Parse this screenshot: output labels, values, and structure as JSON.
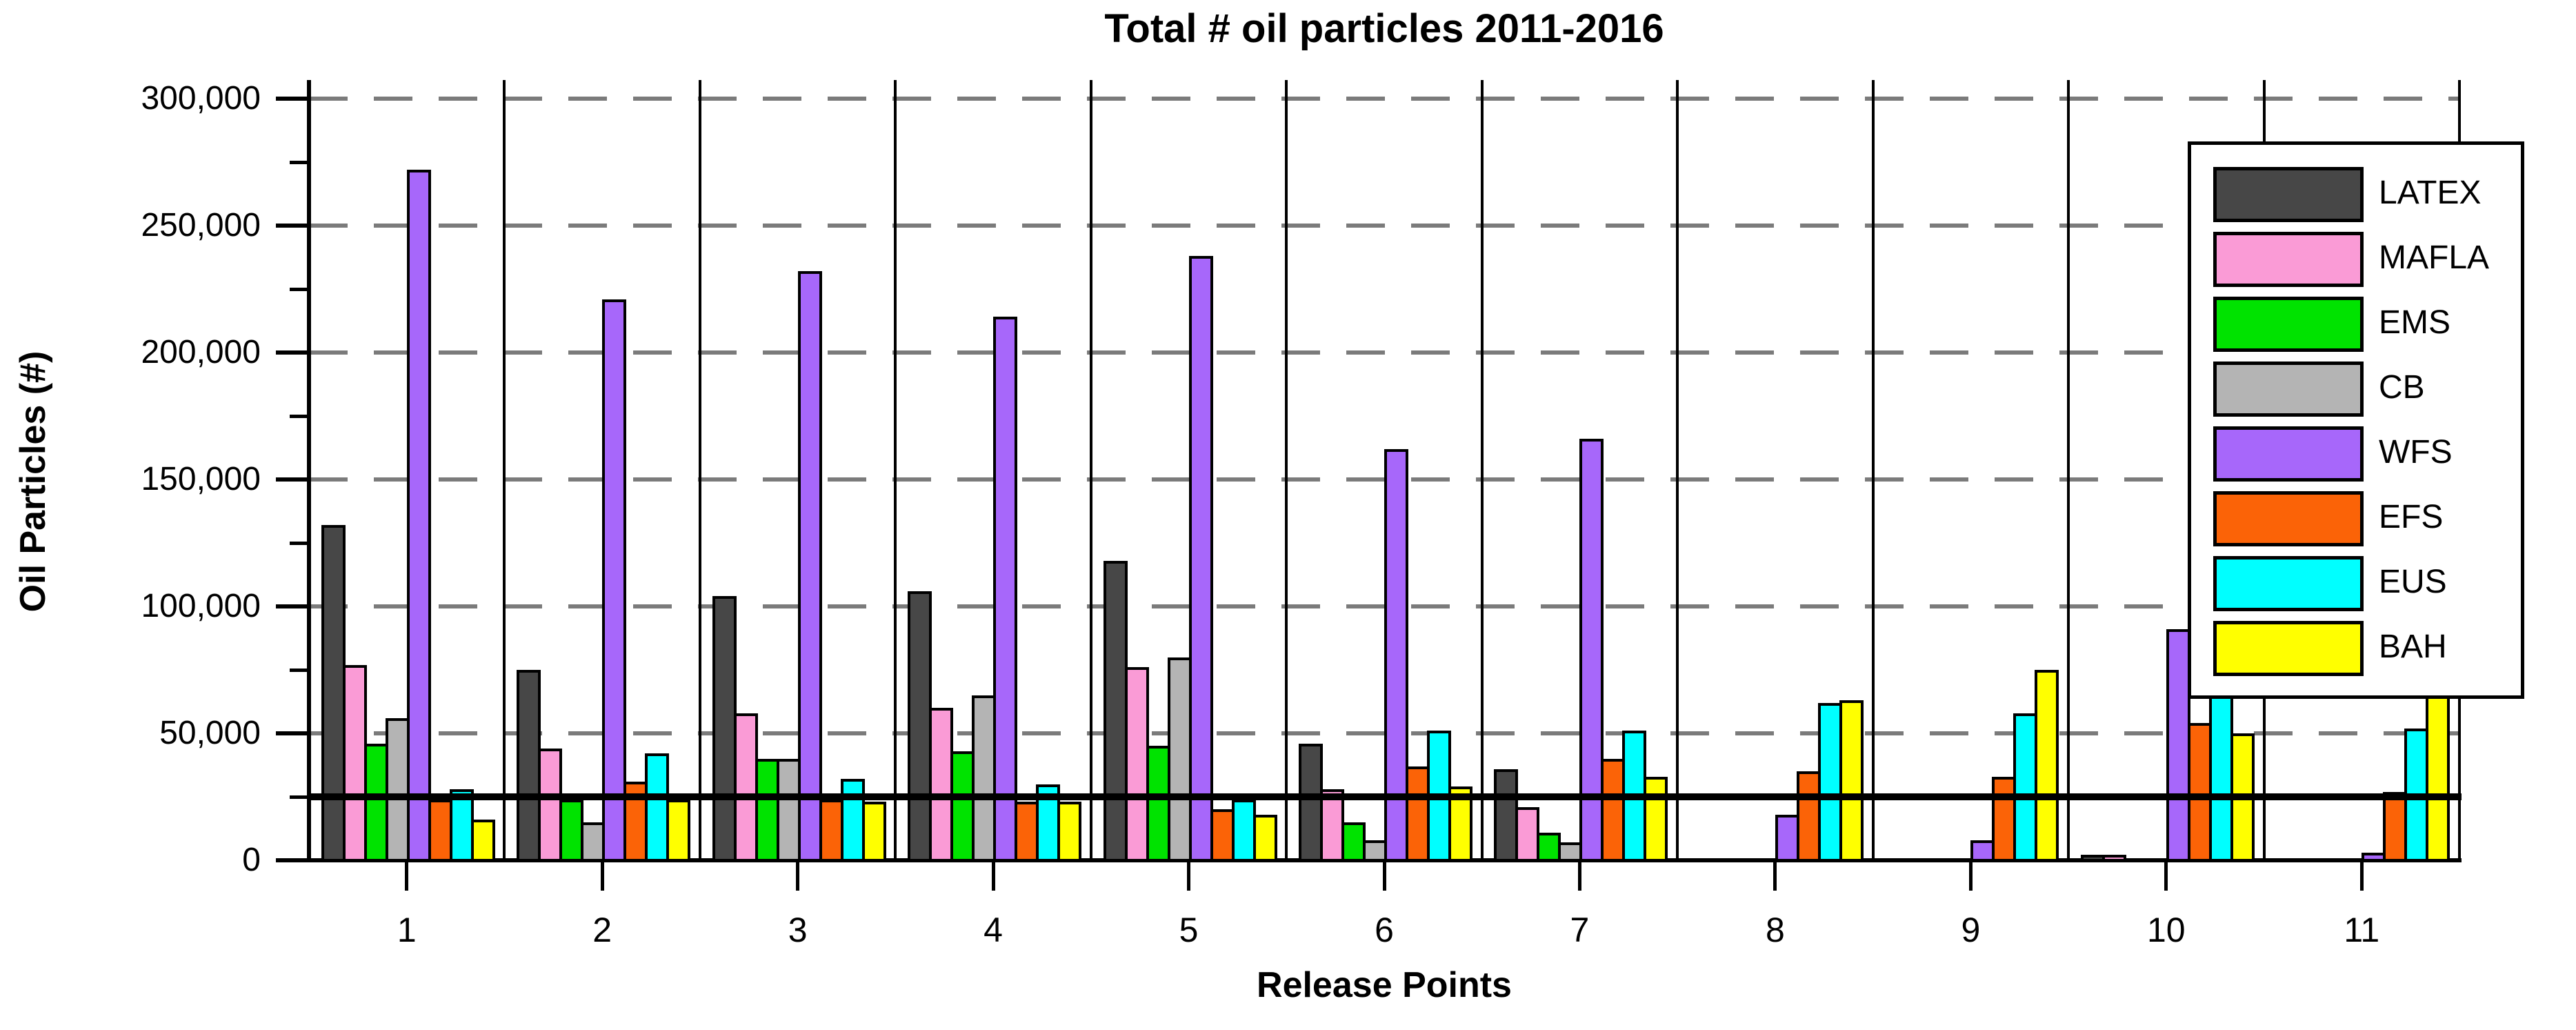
{
  "chart_data": {
    "type": "bar",
    "title": "Total # oil particles 2011-2016",
    "xlabel": "Release Points",
    "ylabel": "Oil Particles (#)",
    "categories": [
      "1",
      "2",
      "3",
      "4",
      "5",
      "6",
      "7",
      "8",
      "9",
      "10",
      "11"
    ],
    "series": [
      {
        "name": "LATEX",
        "color": "#474747",
        "values": [
          132000,
          75000,
          104000,
          106000,
          118000,
          46000,
          36000,
          0,
          0,
          2000,
          0
        ]
      },
      {
        "name": "MAFLA",
        "color": "#FA9BD6",
        "values": [
          77000,
          44000,
          58000,
          60000,
          76000,
          28000,
          21000,
          0,
          0,
          2000,
          0
        ]
      },
      {
        "name": "EMS",
        "color": "#00E300",
        "values": [
          46000,
          24000,
          40000,
          43000,
          45000,
          15000,
          11000,
          0,
          0,
          0,
          0
        ]
      },
      {
        "name": "CB",
        "color": "#B4B4B4",
        "values": [
          56000,
          15000,
          40000,
          65000,
          80000,
          8000,
          7000,
          0,
          0,
          0,
          0
        ]
      },
      {
        "name": "WFS",
        "color": "#A767FA",
        "values": [
          272000,
          221000,
          232000,
          214000,
          238000,
          162000,
          166000,
          18000,
          8000,
          91000,
          3000
        ]
      },
      {
        "name": "EFS",
        "color": "#FB6307",
        "values": [
          24000,
          31000,
          24000,
          23000,
          20000,
          37000,
          40000,
          35000,
          33000,
          54000,
          27000
        ]
      },
      {
        "name": "EUS",
        "color": "#00FFFF",
        "values": [
          28000,
          42000,
          32000,
          30000,
          24000,
          51000,
          51000,
          62000,
          58000,
          65000,
          52000
        ]
      },
      {
        "name": "BAH",
        "color": "#FFFF00",
        "values": [
          16000,
          24000,
          23000,
          23000,
          18000,
          29000,
          33000,
          63000,
          75000,
          50000,
          94000
        ]
      }
    ],
    "ylim": [
      0,
      300000
    ],
    "ytick_interval": 50000,
    "ytick_minor_interval": 25000,
    "ytick_labels": [
      "0",
      "50,000",
      "100,000",
      "150,000",
      "200,000",
      "250,000",
      "300,000"
    ],
    "reference_line_y": 25000,
    "grid": "horizontal dashed at major ticks",
    "grid_color": "#7b7b7b",
    "legend_position": "upper right",
    "legend_labels": [
      "LATEX",
      "MAFLA",
      "EMS",
      "CB",
      "WFS",
      "EFS",
      "EUS",
      "BAH"
    ]
  }
}
